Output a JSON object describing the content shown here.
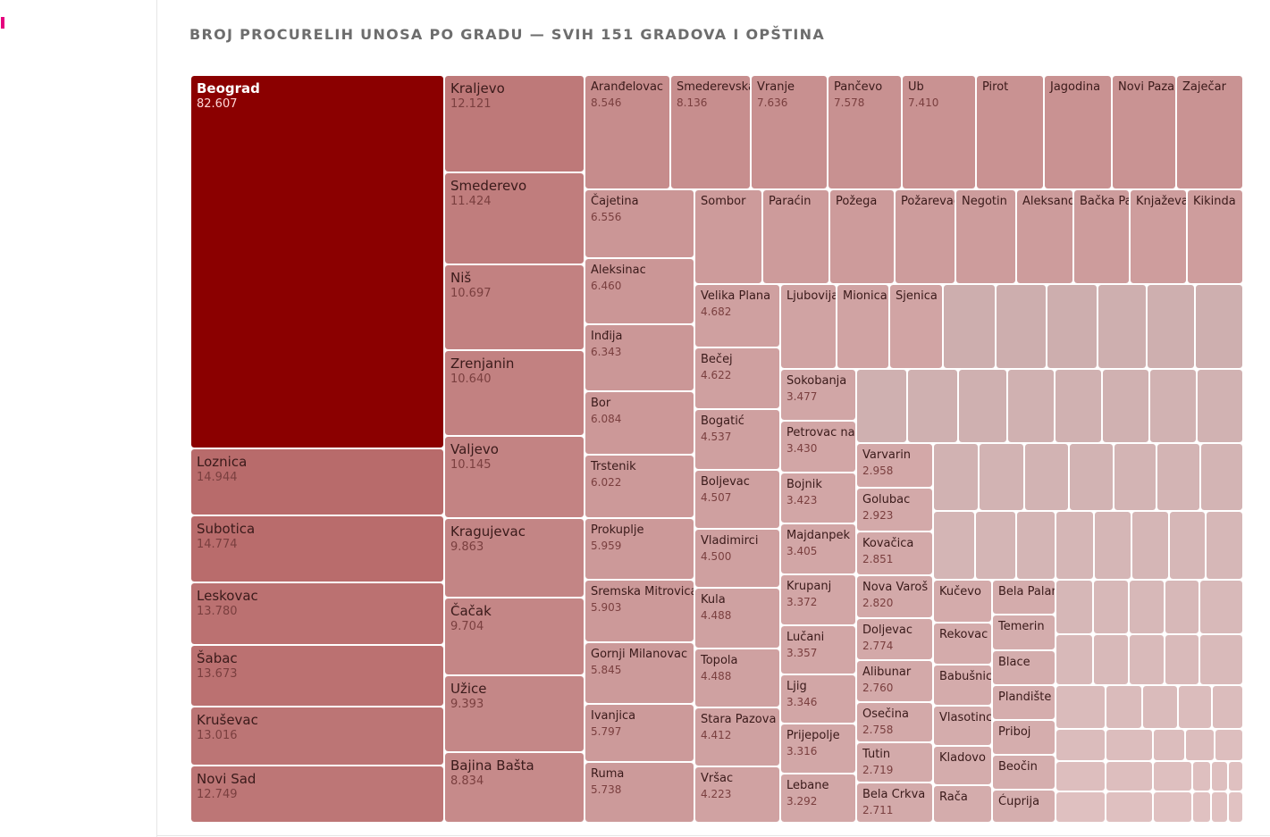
{
  "accent_color": "#e6007e",
  "title": "BROJ PROCURELIH UNOSA PO GRADU — SVIH 151 GRADOVA I OPŠTINA",
  "chart_data": {
    "type": "treemap",
    "title": "BROJ PROCURELIH UNOSA PO GRADU — SVIH 151 GRADOVA I OPŠTINA",
    "total_cells": 151,
    "color_scale": [
      "#d8b5b5",
      "#8b0000"
    ],
    "items": [
      {
        "name": "Beograd",
        "value": 82607,
        "label": "82.607"
      },
      {
        "name": "Loznica",
        "value": 14944,
        "label": "14.944"
      },
      {
        "name": "Subotica",
        "value": 14774,
        "label": "14.774"
      },
      {
        "name": "Leskovac",
        "value": 13780,
        "label": "13.780"
      },
      {
        "name": "Šabac",
        "value": 13673,
        "label": "13.673"
      },
      {
        "name": "Kruševac",
        "value": 13016,
        "label": "13.016"
      },
      {
        "name": "Novi Sad",
        "value": 12749,
        "label": "12.749"
      },
      {
        "name": "Kraljevo",
        "value": 12121,
        "label": "12.121"
      },
      {
        "name": "Smederevo",
        "value": 11424,
        "label": "11.424"
      },
      {
        "name": "Niš",
        "value": 10697,
        "label": "10.697"
      },
      {
        "name": "Zrenjanin",
        "value": 10640,
        "label": "10.640"
      },
      {
        "name": "Valjevo",
        "value": 10145,
        "label": "10.145"
      },
      {
        "name": "Kragujevac",
        "value": 9863,
        "label": "9.863"
      },
      {
        "name": "Čačak",
        "value": 9704,
        "label": "9.704"
      },
      {
        "name": "Užice",
        "value": 9393,
        "label": "9.393"
      },
      {
        "name": "Bajina Bašta",
        "value": 8834,
        "label": "8.834"
      },
      {
        "name": "Aranđelovac",
        "value": 8546,
        "label": "8.546"
      },
      {
        "name": "Smederevska",
        "value": 8136,
        "label": "8.136"
      },
      {
        "name": "Vranje",
        "value": 7636,
        "label": "7.636"
      },
      {
        "name": "Pančevo",
        "value": 7578,
        "label": "7.578"
      },
      {
        "name": "Ub",
        "value": 7410,
        "label": "7.410"
      },
      {
        "name": "Pirot",
        "value": 7300,
        "label": ""
      },
      {
        "name": "Jagodina",
        "value": 7250,
        "label": ""
      },
      {
        "name": "Novi Pazar",
        "value": 7200,
        "label": ""
      },
      {
        "name": "Zaječar",
        "value": 7150,
        "label": ""
      },
      {
        "name": "Čajetina",
        "value": 6556,
        "label": "6.556"
      },
      {
        "name": "Aleksinac",
        "value": 6460,
        "label": "6.460"
      },
      {
        "name": "Inđija",
        "value": 6343,
        "label": "6.343"
      },
      {
        "name": "Bor",
        "value": 6084,
        "label": "6.084"
      },
      {
        "name": "Trstenik",
        "value": 6022,
        "label": "6.022"
      },
      {
        "name": "Prokuplje",
        "value": 5959,
        "label": "5.959"
      },
      {
        "name": "Sremska Mitrovica",
        "value": 5903,
        "label": "5.903"
      },
      {
        "name": "Gornji Milanovac",
        "value": 5845,
        "label": "5.845"
      },
      {
        "name": "Ivanjica",
        "value": 5797,
        "label": "5.797"
      },
      {
        "name": "Ruma",
        "value": 5738,
        "label": "5.738"
      },
      {
        "name": "Sombor",
        "value": 5600,
        "label": ""
      },
      {
        "name": "Paraćin",
        "value": 5550,
        "label": ""
      },
      {
        "name": "Požega",
        "value": 5500,
        "label": ""
      },
      {
        "name": "Požarevac",
        "value": 5450,
        "label": ""
      },
      {
        "name": "Negotin",
        "value": 5400,
        "label": ""
      },
      {
        "name": "Aleksand",
        "value": 5350,
        "label": ""
      },
      {
        "name": "Bačka Pal",
        "value": 5300,
        "label": ""
      },
      {
        "name": "Knjaževac",
        "value": 5250,
        "label": ""
      },
      {
        "name": "Kikinda",
        "value": 5200,
        "label": ""
      },
      {
        "name": "Velika Plana",
        "value": 4682,
        "label": "4.682"
      },
      {
        "name": "Bečej",
        "value": 4622,
        "label": "4.622"
      },
      {
        "name": "Bogatić",
        "value": 4537,
        "label": "4.537"
      },
      {
        "name": "Boljevac",
        "value": 4507,
        "label": "4.507"
      },
      {
        "name": "Vladimirci",
        "value": 4500,
        "label": "4.500"
      },
      {
        "name": "Kula",
        "value": 4488,
        "label": "4.488"
      },
      {
        "name": "Topola",
        "value": 4488,
        "label": "4.488"
      },
      {
        "name": "Stara Pazova",
        "value": 4412,
        "label": "4.412"
      },
      {
        "name": "Vršac",
        "value": 4223,
        "label": "4.223"
      },
      {
        "name": "Ljubovija",
        "value": 4000,
        "label": ""
      },
      {
        "name": "Mionica",
        "value": 3950,
        "label": ""
      },
      {
        "name": "Sjenica",
        "value": 3900,
        "label": ""
      },
      {
        "name": "Sokobanja",
        "value": 3477,
        "label": "3.477"
      },
      {
        "name": "Petrovac na M",
        "value": 3430,
        "label": "3.430"
      },
      {
        "name": "Bojnik",
        "value": 3423,
        "label": "3.423"
      },
      {
        "name": "Majdanpek",
        "value": 3405,
        "label": "3.405"
      },
      {
        "name": "Krupanj",
        "value": 3372,
        "label": "3.372"
      },
      {
        "name": "Lučani",
        "value": 3357,
        "label": "3.357"
      },
      {
        "name": "Ljig",
        "value": 3346,
        "label": "3.346"
      },
      {
        "name": "Prijepolje",
        "value": 3316,
        "label": "3.316"
      },
      {
        "name": "Lebane",
        "value": 3292,
        "label": "3.292"
      },
      {
        "name": "Varvarin",
        "value": 2958,
        "label": "2.958"
      },
      {
        "name": "Golubac",
        "value": 2923,
        "label": "2.923"
      },
      {
        "name": "Kovačica",
        "value": 2851,
        "label": "2.851"
      },
      {
        "name": "Nova Varoš",
        "value": 2820,
        "label": "2.820"
      },
      {
        "name": "Doljevac",
        "value": 2774,
        "label": "2.774"
      },
      {
        "name": "Alibunar",
        "value": 2760,
        "label": "2.760"
      },
      {
        "name": "Osečina",
        "value": 2758,
        "label": "2.758"
      },
      {
        "name": "Tutin",
        "value": 2719,
        "label": "2.719"
      },
      {
        "name": "Bela Crkva",
        "value": 2711,
        "label": "2.711"
      },
      {
        "name": "Kučevo",
        "value": 2500,
        "label": ""
      },
      {
        "name": "Rekovac",
        "value": 2450,
        "label": ""
      },
      {
        "name": "Babušnica",
        "value": 2400,
        "label": ""
      },
      {
        "name": "Vlasotince",
        "value": 2350,
        "label": ""
      },
      {
        "name": "Kladovo",
        "value": 2300,
        "label": ""
      },
      {
        "name": "Rača",
        "value": 2250,
        "label": ""
      },
      {
        "name": "Bela Palanka",
        "value": 2200,
        "label": ""
      },
      {
        "name": "Temerin",
        "value": 2150,
        "label": ""
      },
      {
        "name": "Blace",
        "value": 2100,
        "label": ""
      },
      {
        "name": "Plandište",
        "value": 2050,
        "label": ""
      },
      {
        "name": "Priboj",
        "value": 2000,
        "label": ""
      },
      {
        "name": "Beočin",
        "value": 1950,
        "label": ""
      },
      {
        "name": "Ćuprija",
        "value": 1900,
        "label": ""
      }
    ]
  }
}
